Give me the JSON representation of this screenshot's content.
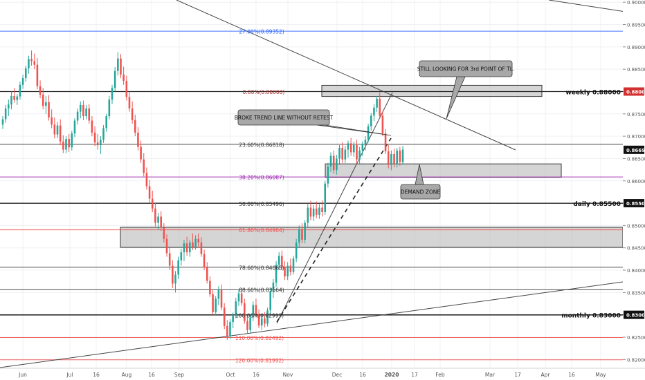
{
  "chart_data": {
    "type": "candlestick",
    "title": "",
    "ylim": [
      0.8154,
      0.9005
    ],
    "grid": true,
    "colors": {
      "up": "#26a69a",
      "down": "#ef5350",
      "wick_up": "#26a69a",
      "wick_down": "#ef5350",
      "zone": "#b2b2b2"
    },
    "y_ticks": [
      "0.90000",
      "0.89500",
      "0.89000",
      "0.88500",
      "0.88000",
      "0.87500",
      "0.87000",
      "0.86500",
      "0.86000",
      "0.85500",
      "0.85000",
      "0.84500",
      "0.84000",
      "0.83500",
      "0.83000",
      "0.82500",
      "0.82000"
    ],
    "x_ticks": [
      "Jun",
      "Jul",
      "16",
      "Aug",
      "16",
      "Sep",
      "Oct",
      "16",
      "Nov",
      "Dec",
      "16",
      "2020",
      "17",
      "Feb",
      "Mar",
      "17",
      "Apr",
      "16",
      "May"
    ],
    "fib_levels": [
      {
        "label": "27.00%(0.89352)",
        "value": 0.89352,
        "color": "#2962ff"
      },
      {
        "label": "0.00%(0.88000)",
        "value": 0.88,
        "color": "#a52a2a"
      },
      {
        "label": "23.60%(0.86818)",
        "value": 0.86818,
        "color": "#333333"
      },
      {
        "label": "38.20%(0.86087)",
        "value": 0.86087,
        "color": "#9c27b0"
      },
      {
        "label": "50.00%(0.85496)",
        "value": 0.85496,
        "color": "#333333"
      },
      {
        "label": "61.80%(0.84904)",
        "value": 0.84904,
        "color": "#ef5350"
      },
      {
        "label": "78.60%(0.84065)",
        "value": 0.84065,
        "color": "#333333"
      },
      {
        "label": "88.60%(0.83564)",
        "value": 0.83564,
        "color": "#333333"
      },
      {
        "label": "100.00%(0.82993)",
        "value": 0.82993,
        "color": "#333333"
      },
      {
        "label": "110.00%(0.82492)",
        "value": 0.82492,
        "color": "#ef5350"
      },
      {
        "label": "120.00%(0.81992)",
        "value": 0.81992,
        "color": "#ef5350"
      }
    ],
    "key_levels": [
      {
        "label": "weekly 0.88000",
        "value": 0.88,
        "badge": "0.88000",
        "badge_color": "#d32f2f"
      },
      {
        "label": "daily 0.85500",
        "value": 0.855,
        "badge": "0.85500",
        "badge_color": "#111111"
      },
      {
        "label": "monthly 0.83000",
        "value": 0.83,
        "badge": "0.83000",
        "badge_color": "#111111"
      }
    ],
    "current_price": {
      "value": 0.86695,
      "badge": "0.86695"
    },
    "zones": [
      {
        "name": "top-resistance",
        "from": 0.8789,
        "to": 0.8814
      },
      {
        "name": "demand",
        "from": 0.8608,
        "to": 0.8638
      },
      {
        "name": "lower-support",
        "from": 0.8451,
        "to": 0.8496
      }
    ],
    "annotations": [
      {
        "text": "STILL LOOKING FOR 3rd POINT OF TL.",
        "name": "annotation-still-looking"
      },
      {
        "text": "BROKE TREND LINE WITHOUT RETEST",
        "name": "annotation-broke-trendline"
      },
      {
        "text": "DEMAND ZONE",
        "name": "annotation-demand-zone"
      }
    ],
    "candles": [
      {
        "o": 0.8726,
        "h": 0.8745,
        "l": 0.8716,
        "c": 0.8738
      },
      {
        "o": 0.8738,
        "h": 0.877,
        "l": 0.873,
        "c": 0.8762
      },
      {
        "o": 0.8762,
        "h": 0.8782,
        "l": 0.8745,
        "c": 0.8771
      },
      {
        "o": 0.8771,
        "h": 0.88,
        "l": 0.876,
        "c": 0.879
      },
      {
        "o": 0.879,
        "h": 0.8808,
        "l": 0.8775,
        "c": 0.8781
      },
      {
        "o": 0.8781,
        "h": 0.8794,
        "l": 0.877,
        "c": 0.8789
      },
      {
        "o": 0.8789,
        "h": 0.8822,
        "l": 0.8782,
        "c": 0.8815
      },
      {
        "o": 0.8815,
        "h": 0.8838,
        "l": 0.8806,
        "c": 0.883
      },
      {
        "o": 0.883,
        "h": 0.8858,
        "l": 0.8822,
        "c": 0.8852
      },
      {
        "o": 0.8852,
        "h": 0.888,
        "l": 0.884,
        "c": 0.8873
      },
      {
        "o": 0.8873,
        "h": 0.8892,
        "l": 0.8858,
        "c": 0.8868
      },
      {
        "o": 0.8868,
        "h": 0.8885,
        "l": 0.885,
        "c": 0.886
      },
      {
        "o": 0.886,
        "h": 0.8875,
        "l": 0.8805,
        "c": 0.8812
      },
      {
        "o": 0.8812,
        "h": 0.8825,
        "l": 0.8785,
        "c": 0.8793
      },
      {
        "o": 0.8793,
        "h": 0.8808,
        "l": 0.876,
        "c": 0.8768
      },
      {
        "o": 0.8768,
        "h": 0.879,
        "l": 0.875,
        "c": 0.8776
      },
      {
        "o": 0.8776,
        "h": 0.8792,
        "l": 0.8735,
        "c": 0.8742
      },
      {
        "o": 0.8742,
        "h": 0.876,
        "l": 0.8718,
        "c": 0.8726
      },
      {
        "o": 0.8726,
        "h": 0.8742,
        "l": 0.8695,
        "c": 0.8704
      },
      {
        "o": 0.8704,
        "h": 0.8732,
        "l": 0.8696,
        "c": 0.8724
      },
      {
        "o": 0.8724,
        "h": 0.8738,
        "l": 0.868,
        "c": 0.8688
      },
      {
        "o": 0.8688,
        "h": 0.8702,
        "l": 0.8662,
        "c": 0.867
      },
      {
        "o": 0.867,
        "h": 0.87,
        "l": 0.8662,
        "c": 0.8694
      },
      {
        "o": 0.8694,
        "h": 0.8705,
        "l": 0.8665,
        "c": 0.8675
      },
      {
        "o": 0.8675,
        "h": 0.8712,
        "l": 0.8668,
        "c": 0.8706
      },
      {
        "o": 0.8706,
        "h": 0.874,
        "l": 0.8698,
        "c": 0.8735
      },
      {
        "o": 0.8735,
        "h": 0.8762,
        "l": 0.8726,
        "c": 0.8755
      },
      {
        "o": 0.8755,
        "h": 0.8778,
        "l": 0.874,
        "c": 0.877
      },
      {
        "o": 0.877,
        "h": 0.878,
        "l": 0.8736,
        "c": 0.8745
      },
      {
        "o": 0.8745,
        "h": 0.877,
        "l": 0.8738,
        "c": 0.8762
      },
      {
        "o": 0.8762,
        "h": 0.8772,
        "l": 0.8728,
        "c": 0.8735
      },
      {
        "o": 0.8735,
        "h": 0.8745,
        "l": 0.87,
        "c": 0.8708
      },
      {
        "o": 0.8708,
        "h": 0.8722,
        "l": 0.8678,
        "c": 0.8686
      },
      {
        "o": 0.8686,
        "h": 0.8705,
        "l": 0.867,
        "c": 0.868
      },
      {
        "o": 0.868,
        "h": 0.87,
        "l": 0.866,
        "c": 0.8692
      },
      {
        "o": 0.8692,
        "h": 0.8725,
        "l": 0.8685,
        "c": 0.8718
      },
      {
        "o": 0.8718,
        "h": 0.875,
        "l": 0.871,
        "c": 0.8745
      },
      {
        "o": 0.8745,
        "h": 0.879,
        "l": 0.8738,
        "c": 0.8782
      },
      {
        "o": 0.8782,
        "h": 0.8815,
        "l": 0.8772,
        "c": 0.8808
      },
      {
        "o": 0.8808,
        "h": 0.8855,
        "l": 0.88,
        "c": 0.8846
      },
      {
        "o": 0.8846,
        "h": 0.8888,
        "l": 0.8836,
        "c": 0.8874
      },
      {
        "o": 0.8874,
        "h": 0.8884,
        "l": 0.883,
        "c": 0.8838
      },
      {
        "o": 0.8838,
        "h": 0.8856,
        "l": 0.8815,
        "c": 0.8824
      },
      {
        "o": 0.8824,
        "h": 0.8835,
        "l": 0.878,
        "c": 0.8788
      },
      {
        "o": 0.8788,
        "h": 0.88,
        "l": 0.8755,
        "c": 0.8762
      },
      {
        "o": 0.8762,
        "h": 0.8778,
        "l": 0.8728,
        "c": 0.8736
      },
      {
        "o": 0.8736,
        "h": 0.8748,
        "l": 0.87,
        "c": 0.8708
      },
      {
        "o": 0.8708,
        "h": 0.872,
        "l": 0.8668,
        "c": 0.8676
      },
      {
        "o": 0.8676,
        "h": 0.869,
        "l": 0.864,
        "c": 0.8648
      },
      {
        "o": 0.8648,
        "h": 0.8662,
        "l": 0.861,
        "c": 0.8618
      },
      {
        "o": 0.8618,
        "h": 0.863,
        "l": 0.858,
        "c": 0.8588
      },
      {
        "o": 0.8588,
        "h": 0.8602,
        "l": 0.8552,
        "c": 0.856
      },
      {
        "o": 0.856,
        "h": 0.8578,
        "l": 0.853,
        "c": 0.8538
      },
      {
        "o": 0.8538,
        "h": 0.855,
        "l": 0.8498,
        "c": 0.8506
      },
      {
        "o": 0.8506,
        "h": 0.8528,
        "l": 0.849,
        "c": 0.852
      },
      {
        "o": 0.852,
        "h": 0.8532,
        "l": 0.8488,
        "c": 0.8495
      },
      {
        "o": 0.8495,
        "h": 0.8505,
        "l": 0.8462,
        "c": 0.847
      },
      {
        "o": 0.847,
        "h": 0.848,
        "l": 0.843,
        "c": 0.8438
      },
      {
        "o": 0.8438,
        "h": 0.845,
        "l": 0.84,
        "c": 0.841
      },
      {
        "o": 0.841,
        "h": 0.8422,
        "l": 0.836,
        "c": 0.837
      },
      {
        "o": 0.837,
        "h": 0.8398,
        "l": 0.835,
        "c": 0.839
      },
      {
        "o": 0.839,
        "h": 0.843,
        "l": 0.838,
        "c": 0.8422
      },
      {
        "o": 0.8422,
        "h": 0.8448,
        "l": 0.841,
        "c": 0.844
      },
      {
        "o": 0.844,
        "h": 0.8468,
        "l": 0.842,
        "c": 0.846
      },
      {
        "o": 0.846,
        "h": 0.8475,
        "l": 0.8432,
        "c": 0.844
      },
      {
        "o": 0.844,
        "h": 0.8468,
        "l": 0.843,
        "c": 0.8462
      },
      {
        "o": 0.8462,
        "h": 0.8482,
        "l": 0.8445,
        "c": 0.8452
      },
      {
        "o": 0.8452,
        "h": 0.8478,
        "l": 0.8446,
        "c": 0.847
      },
      {
        "o": 0.847,
        "h": 0.8482,
        "l": 0.845,
        "c": 0.8462
      },
      {
        "o": 0.8462,
        "h": 0.8474,
        "l": 0.843,
        "c": 0.8436
      },
      {
        "o": 0.8436,
        "h": 0.8446,
        "l": 0.84,
        "c": 0.8406
      },
      {
        "o": 0.8406,
        "h": 0.8418,
        "l": 0.837,
        "c": 0.8376
      },
      {
        "o": 0.8376,
        "h": 0.8386,
        "l": 0.834,
        "c": 0.8346
      },
      {
        "o": 0.8346,
        "h": 0.8355,
        "l": 0.83,
        "c": 0.8306
      },
      {
        "o": 0.8306,
        "h": 0.8342,
        "l": 0.8298,
        "c": 0.8336
      },
      {
        "o": 0.8336,
        "h": 0.8364,
        "l": 0.8322,
        "c": 0.8356
      },
      {
        "o": 0.8356,
        "h": 0.8368,
        "l": 0.831,
        "c": 0.8316
      },
      {
        "o": 0.8316,
        "h": 0.8326,
        "l": 0.8268,
        "c": 0.8275
      },
      {
        "o": 0.8275,
        "h": 0.8288,
        "l": 0.8244,
        "c": 0.8252
      },
      {
        "o": 0.8252,
        "h": 0.829,
        "l": 0.8246,
        "c": 0.8284
      },
      {
        "o": 0.8284,
        "h": 0.8305,
        "l": 0.827,
        "c": 0.8298
      },
      {
        "o": 0.8298,
        "h": 0.8338,
        "l": 0.8292,
        "c": 0.833
      },
      {
        "o": 0.833,
        "h": 0.8355,
        "l": 0.832,
        "c": 0.8348
      },
      {
        "o": 0.8348,
        "h": 0.836,
        "l": 0.832,
        "c": 0.8326
      },
      {
        "o": 0.8326,
        "h": 0.8336,
        "l": 0.828,
        "c": 0.8286
      },
      {
        "o": 0.8286,
        "h": 0.83,
        "l": 0.8258,
        "c": 0.8266
      },
      {
        "o": 0.8266,
        "h": 0.83,
        "l": 0.826,
        "c": 0.8294
      },
      {
        "o": 0.8294,
        "h": 0.833,
        "l": 0.8286,
        "c": 0.8322
      },
      {
        "o": 0.8322,
        "h": 0.8336,
        "l": 0.8296,
        "c": 0.8302
      },
      {
        "o": 0.8302,
        "h": 0.8312,
        "l": 0.827,
        "c": 0.8276
      },
      {
        "o": 0.8276,
        "h": 0.83,
        "l": 0.8266,
        "c": 0.8292
      },
      {
        "o": 0.8292,
        "h": 0.8306,
        "l": 0.8272,
        "c": 0.828
      },
      {
        "o": 0.828,
        "h": 0.8316,
        "l": 0.8274,
        "c": 0.831
      },
      {
        "o": 0.831,
        "h": 0.836,
        "l": 0.8302,
        "c": 0.8352
      },
      {
        "o": 0.8352,
        "h": 0.838,
        "l": 0.8338,
        "c": 0.8372
      },
      {
        "o": 0.8372,
        "h": 0.842,
        "l": 0.8362,
        "c": 0.8412
      },
      {
        "o": 0.8412,
        "h": 0.844,
        "l": 0.84,
        "c": 0.8432
      },
      {
        "o": 0.8432,
        "h": 0.8444,
        "l": 0.84,
        "c": 0.8408
      },
      {
        "o": 0.8408,
        "h": 0.842,
        "l": 0.8378,
        "c": 0.8386
      },
      {
        "o": 0.8386,
        "h": 0.8418,
        "l": 0.8378,
        "c": 0.841
      },
      {
        "o": 0.841,
        "h": 0.8426,
        "l": 0.8388,
        "c": 0.8396
      },
      {
        "o": 0.8396,
        "h": 0.8432,
        "l": 0.839,
        "c": 0.8426
      },
      {
        "o": 0.8426,
        "h": 0.847,
        "l": 0.8418,
        "c": 0.8462
      },
      {
        "o": 0.8462,
        "h": 0.85,
        "l": 0.845,
        "c": 0.8492
      },
      {
        "o": 0.8492,
        "h": 0.8505,
        "l": 0.846,
        "c": 0.8468
      },
      {
        "o": 0.8468,
        "h": 0.8512,
        "l": 0.846,
        "c": 0.8506
      },
      {
        "o": 0.8506,
        "h": 0.8548,
        "l": 0.8496,
        "c": 0.854
      },
      {
        "o": 0.854,
        "h": 0.8555,
        "l": 0.8512,
        "c": 0.852
      },
      {
        "o": 0.852,
        "h": 0.8546,
        "l": 0.851,
        "c": 0.8538
      },
      {
        "o": 0.8538,
        "h": 0.8554,
        "l": 0.8516,
        "c": 0.8524
      },
      {
        "o": 0.8524,
        "h": 0.8548,
        "l": 0.8515,
        "c": 0.854
      },
      {
        "o": 0.854,
        "h": 0.8556,
        "l": 0.852,
        "c": 0.853
      },
      {
        "o": 0.853,
        "h": 0.86,
        "l": 0.8524,
        "c": 0.8594
      },
      {
        "o": 0.8594,
        "h": 0.864,
        "l": 0.8585,
        "c": 0.8632
      },
      {
        "o": 0.8632,
        "h": 0.8664,
        "l": 0.862,
        "c": 0.8656
      },
      {
        "o": 0.8656,
        "h": 0.8668,
        "l": 0.8616,
        "c": 0.8624
      },
      {
        "o": 0.8624,
        "h": 0.8658,
        "l": 0.8614,
        "c": 0.865
      },
      {
        "o": 0.865,
        "h": 0.868,
        "l": 0.8636,
        "c": 0.8674
      },
      {
        "o": 0.8674,
        "h": 0.8686,
        "l": 0.864,
        "c": 0.8648
      },
      {
        "o": 0.8648,
        "h": 0.8678,
        "l": 0.864,
        "c": 0.867
      },
      {
        "o": 0.867,
        "h": 0.869,
        "l": 0.8652,
        "c": 0.8684
      },
      {
        "o": 0.8684,
        "h": 0.8696,
        "l": 0.8656,
        "c": 0.8664
      },
      {
        "o": 0.8664,
        "h": 0.8688,
        "l": 0.8654,
        "c": 0.868
      },
      {
        "o": 0.868,
        "h": 0.8692,
        "l": 0.864,
        "c": 0.8648
      },
      {
        "o": 0.8648,
        "h": 0.8676,
        "l": 0.8636,
        "c": 0.8668
      },
      {
        "o": 0.8668,
        "h": 0.8688,
        "l": 0.8656,
        "c": 0.8682
      },
      {
        "o": 0.8682,
        "h": 0.87,
        "l": 0.8668,
        "c": 0.8692
      },
      {
        "o": 0.8692,
        "h": 0.8728,
        "l": 0.8686,
        "c": 0.8722
      },
      {
        "o": 0.8722,
        "h": 0.8752,
        "l": 0.8712,
        "c": 0.8746
      },
      {
        "o": 0.8746,
        "h": 0.8772,
        "l": 0.8734,
        "c": 0.8764
      },
      {
        "o": 0.8764,
        "h": 0.879,
        "l": 0.8754,
        "c": 0.8784
      },
      {
        "o": 0.8784,
        "h": 0.8798,
        "l": 0.874,
        "c": 0.8746
      },
      {
        "o": 0.8746,
        "h": 0.8756,
        "l": 0.87,
        "c": 0.8706
      },
      {
        "o": 0.8706,
        "h": 0.8716,
        "l": 0.866,
        "c": 0.8666
      },
      {
        "o": 0.8666,
        "h": 0.868,
        "l": 0.8628,
        "c": 0.8636
      },
      {
        "o": 0.8636,
        "h": 0.8668,
        "l": 0.8624,
        "c": 0.866
      },
      {
        "o": 0.866,
        "h": 0.8672,
        "l": 0.863,
        "c": 0.8638
      },
      {
        "o": 0.8638,
        "h": 0.8674,
        "l": 0.863,
        "c": 0.8668
      },
      {
        "o": 0.8668,
        "h": 0.8676,
        "l": 0.8634,
        "c": 0.8642
      },
      {
        "o": 0.8642,
        "h": 0.8678,
        "l": 0.8636,
        "c": 0.867
      }
    ]
  }
}
